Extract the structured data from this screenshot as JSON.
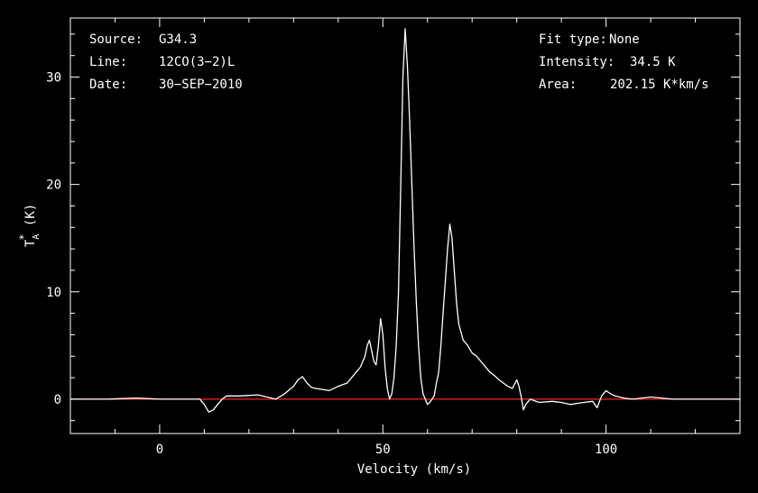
{
  "header": {
    "source_label": "Source:",
    "source_value": "G34.3",
    "line_label": "Line:",
    "line_value": "12CO(3−2)L",
    "date_label": "Date:",
    "date_value": "30−SEP−2010",
    "fit_label": "Fit type:",
    "fit_value": "None",
    "intensity_label": "Intensity:",
    "intensity_value": "34.5 K",
    "area_label": "Area:",
    "area_value": "202.15 K*km/s"
  },
  "colors": {
    "background": "#000000",
    "axes": "#ffffff",
    "spectrum": "#ffffff",
    "baseline": "#ff2020"
  },
  "chart_data": {
    "type": "line",
    "xlabel": "Velocity (km/s)",
    "ylabel": "T",
    "ylabel_sub": "A",
    "ylabel_sup": "*",
    "ylabel_unit": "(K)",
    "xlim": [
      -20,
      130
    ],
    "ylim": [
      -3.2,
      35.5
    ],
    "xticks": [
      0,
      50,
      100
    ],
    "yticks": [
      0,
      10,
      20,
      30
    ],
    "baseline_value": 0,
    "series": [
      {
        "x": [
          -20,
          -12,
          -5,
          0,
          5,
          9,
          10,
          11,
          12,
          13,
          14,
          15,
          18,
          22,
          26,
          28,
          30,
          31,
          32,
          33,
          34,
          35,
          38,
          40,
          42,
          43,
          44,
          45,
          46,
          46.5,
          47,
          47.5,
          48,
          48.5,
          49,
          49.5,
          50,
          50.5,
          51,
          51.5,
          52,
          52.5,
          53,
          53.5,
          54,
          54.5,
          55,
          55.5,
          56,
          56.5,
          57,
          57.5,
          58,
          58.5,
          59,
          59.5,
          60,
          60.5,
          61,
          61.5,
          62,
          62.5,
          63,
          63.5,
          64,
          64.5,
          65,
          65.5,
          66,
          66.5,
          67,
          68,
          69,
          70,
          71,
          72,
          73,
          74,
          75,
          76,
          77,
          78,
          79,
          80,
          80.5,
          81,
          81.5,
          82,
          83,
          85,
          88,
          90,
          92,
          95,
          97,
          98,
          99,
          100,
          101,
          102,
          104,
          106,
          110,
          115,
          120,
          125,
          130
        ],
        "y": [
          0,
          0,
          0.1,
          0,
          0,
          0,
          -0.5,
          -1.2,
          -1,
          -0.5,
          0,
          0.3,
          0.3,
          0.4,
          0,
          0.5,
          1.2,
          1.8,
          2.1,
          1.5,
          1.1,
          1,
          0.8,
          1.2,
          1.5,
          2,
          2.5,
          3,
          4,
          5,
          5.5,
          4.5,
          3.5,
          3.2,
          5,
          7.5,
          6,
          3,
          1,
          0,
          0.5,
          2,
          5,
          10,
          20,
          30,
          34.5,
          31,
          26,
          20,
          14,
          9,
          5,
          2,
          0.5,
          0,
          -0.5,
          -0.3,
          0,
          0.3,
          1.5,
          2.5,
          5,
          8,
          11,
          14,
          16.3,
          15,
          12,
          9,
          7,
          5.5,
          5,
          4.3,
          4,
          3.5,
          3,
          2.5,
          2.2,
          1.8,
          1.5,
          1.2,
          1,
          1.8,
          1.2,
          0.2,
          -1,
          -0.5,
          0,
          -0.3,
          -0.2,
          -0.3,
          -0.5,
          -0.3,
          -0.2,
          -0.8,
          0.3,
          0.8,
          0.5,
          0.3,
          0.1,
          0,
          0.2,
          0,
          0,
          0,
          0
        ]
      }
    ]
  }
}
